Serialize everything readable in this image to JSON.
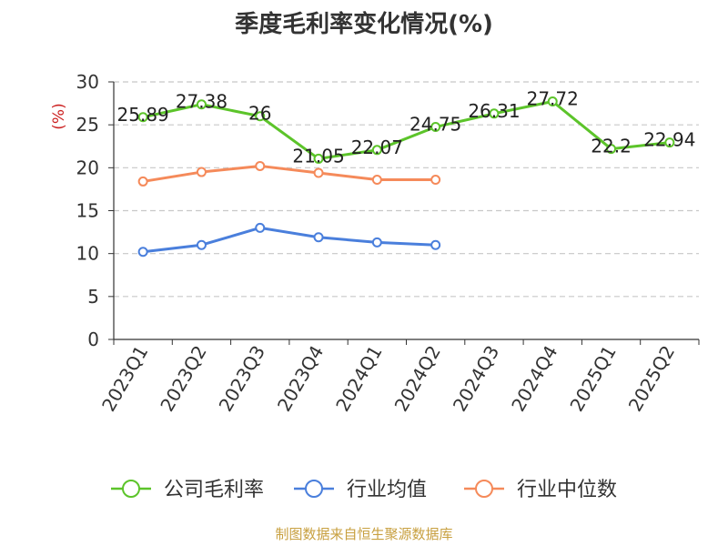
{
  "chart_data": {
    "type": "line",
    "title": "季度毛利率变化情况(%)",
    "ylabel": "(%)",
    "xlabel": "",
    "categories": [
      "2023Q1",
      "2023Q2",
      "2023Q3",
      "2023Q4",
      "2024Q1",
      "2024Q2",
      "2024Q3",
      "2024Q4",
      "2025Q1",
      "2025Q2"
    ],
    "ylim": [
      0,
      30
    ],
    "yticks": [
      "0",
      "5",
      "10",
      "15",
      "20",
      "25",
      "30"
    ],
    "grid": true,
    "legend_position": "bottom",
    "series": [
      {
        "name": "公司毛利率",
        "color": "#5cc42a",
        "values": [
          25.89,
          27.38,
          26,
          21.05,
          22.07,
          24.75,
          26.31,
          27.72,
          22.2,
          22.94
        ],
        "labels": [
          "25.89",
          "27.38",
          "26",
          "21.05",
          "22.07",
          "24.75",
          "26.31",
          "27.72",
          "22.2",
          "22.94"
        ]
      },
      {
        "name": "行业均值",
        "color": "#4a7fdc",
        "values": [
          10.2,
          11.0,
          13.0,
          11.9,
          11.3,
          11.0,
          null,
          null,
          null,
          null
        ]
      },
      {
        "name": "行业中位数",
        "color": "#f58a5a",
        "values": [
          18.4,
          19.5,
          20.2,
          19.4,
          18.6,
          18.6,
          null,
          null,
          null,
          null
        ]
      }
    ]
  },
  "footer": "制图数据来自恒生聚源数据库"
}
